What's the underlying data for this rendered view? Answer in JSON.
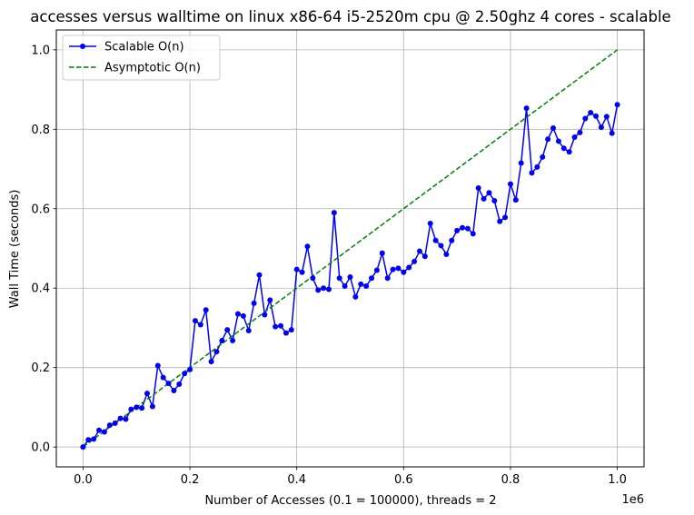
{
  "chart_data": {
    "type": "line",
    "title": "accesses versus walltime on linux x86-64 i5-2520m cpu @ 2.50ghz 4 cores - scalable",
    "xlabel": "Number of Accesses (0.1 = 100000), threads = 2",
    "ylabel": "Wall Time (seconds)",
    "x_offset_label": "1e6",
    "xlim": [
      -0.05,
      1.05
    ],
    "ylim": [
      -0.05,
      1.05
    ],
    "x_ticks": [
      0.0,
      0.2,
      0.4,
      0.6,
      0.8,
      1.0
    ],
    "x_tick_labels": [
      "0.0",
      "0.2",
      "0.4",
      "0.6",
      "0.8",
      "1.0"
    ],
    "y_ticks": [
      0.0,
      0.2,
      0.4,
      0.6,
      0.8,
      1.0
    ],
    "y_tick_labels": [
      "0.0",
      "0.2",
      "0.4",
      "0.6",
      "0.8",
      "1.0"
    ],
    "grid": true,
    "legend_position": "top-left",
    "series": [
      {
        "name": "Scalable O(n)",
        "color": "#0000ff",
        "style": "solid-markers",
        "x": [
          0.0,
          0.01,
          0.02,
          0.03,
          0.04,
          0.05,
          0.06,
          0.07,
          0.08,
          0.09,
          0.1,
          0.11,
          0.12,
          0.13,
          0.14,
          0.15,
          0.16,
          0.17,
          0.18,
          0.19,
          0.2,
          0.21,
          0.22,
          0.23,
          0.24,
          0.25,
          0.26,
          0.27,
          0.28,
          0.29,
          0.3,
          0.31,
          0.32,
          0.33,
          0.34,
          0.35,
          0.36,
          0.37,
          0.38,
          0.39,
          0.4,
          0.41,
          0.42,
          0.43,
          0.44,
          0.45,
          0.46,
          0.47,
          0.48,
          0.49,
          0.5,
          0.51,
          0.52,
          0.53,
          0.54,
          0.55,
          0.56,
          0.57,
          0.58,
          0.59,
          0.6,
          0.61,
          0.62,
          0.63,
          0.64,
          0.65,
          0.66,
          0.67,
          0.68,
          0.69,
          0.7,
          0.71,
          0.72,
          0.73,
          0.74,
          0.75,
          0.76,
          0.77,
          0.78,
          0.79,
          0.8,
          0.81,
          0.82,
          0.83,
          0.84,
          0.85,
          0.86,
          0.87,
          0.88,
          0.89,
          0.9,
          0.91,
          0.92,
          0.93,
          0.94,
          0.95,
          0.96,
          0.97,
          0.98,
          0.99,
          1.0
        ],
        "y": [
          0.0,
          0.018,
          0.02,
          0.042,
          0.038,
          0.055,
          0.06,
          0.072,
          0.07,
          0.095,
          0.1,
          0.098,
          0.135,
          0.102,
          0.205,
          0.175,
          0.16,
          0.142,
          0.158,
          0.185,
          0.195,
          0.318,
          0.308,
          0.345,
          0.215,
          0.24,
          0.268,
          0.295,
          0.268,
          0.335,
          0.33,
          0.293,
          0.362,
          0.433,
          0.333,
          0.37,
          0.303,
          0.305,
          0.287,
          0.295,
          0.447,
          0.44,
          0.505,
          0.425,
          0.395,
          0.4,
          0.397,
          0.59,
          0.425,
          0.405,
          0.428,
          0.378,
          0.41,
          0.405,
          0.425,
          0.445,
          0.488,
          0.425,
          0.447,
          0.45,
          0.44,
          0.452,
          0.467,
          0.493,
          0.48,
          0.563,
          0.52,
          0.507,
          0.485,
          0.52,
          0.545,
          0.552,
          0.55,
          0.537,
          0.652,
          0.625,
          0.64,
          0.62,
          0.568,
          0.578,
          0.662,
          0.622,
          0.715,
          0.853,
          0.69,
          0.705,
          0.73,
          0.775,
          0.803,
          0.77,
          0.752,
          0.743,
          0.78,
          0.792,
          0.827,
          0.842,
          0.833,
          0.805,
          0.832,
          0.79,
          0.862
        ]
      },
      {
        "name": "Asymptotic O(n)",
        "color": "#008000",
        "style": "dashed",
        "x": [
          0.0,
          1.0
        ],
        "y": [
          0.0,
          1.0
        ]
      }
    ]
  }
}
